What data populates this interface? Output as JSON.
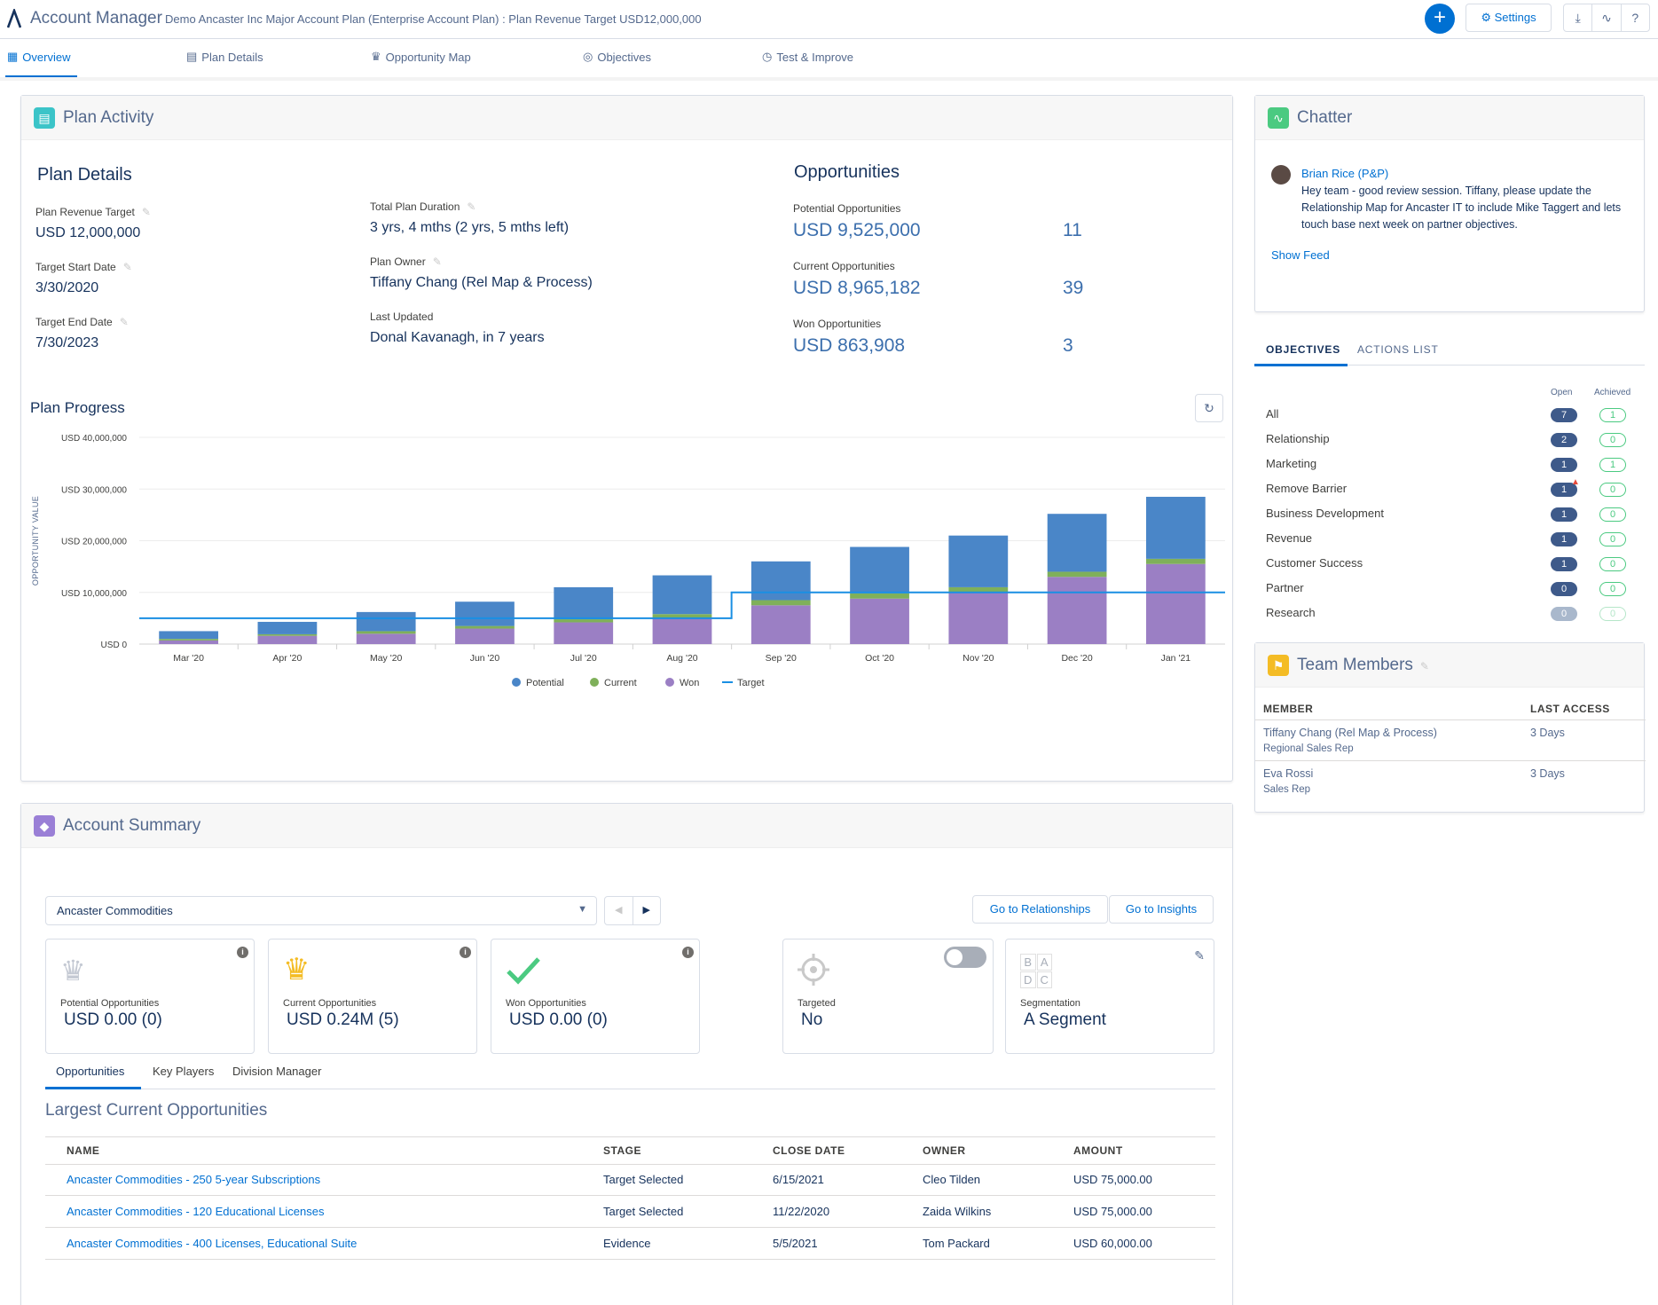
{
  "header": {
    "app_title": "Account Manager",
    "plan_title": "Demo Ancaster Inc Major Account Plan (Enterprise Account Plan) : Plan Revenue Target USD12,000,000",
    "settings_label": "Settings"
  },
  "nav": {
    "tabs": [
      {
        "label": "Overview"
      },
      {
        "label": "Plan Details"
      },
      {
        "label": "Opportunity Map"
      },
      {
        "label": "Objectives"
      },
      {
        "label": "Test & Improve"
      }
    ]
  },
  "plan_activity": {
    "title": "Plan Activity",
    "plan_details_heading": "Plan Details",
    "revenue_target_label": "Plan Revenue Target",
    "revenue_target_value": "USD 12,000,000",
    "start_label": "Target Start Date",
    "start_value": "3/30/2020",
    "end_label": "Target End Date",
    "end_value": "7/30/2023",
    "duration_label": "Total Plan Duration",
    "duration_value": "3 yrs, 4 mths (2 yrs, 5 mths left)",
    "owner_label": "Plan Owner",
    "owner_value": "Tiffany Chang (Rel Map & Process)",
    "updated_label": "Last Updated",
    "updated_value": "Donal Kavanagh, in 7 years",
    "opps_heading": "Opportunities",
    "potential_label": "Potential Opportunities",
    "potential_value": "USD 9,525,000",
    "potential_count": "11",
    "current_label": "Current Opportunities",
    "current_value": "USD 8,965,182",
    "current_count": "39",
    "won_label": "Won Opportunities",
    "won_value": "USD 863,908",
    "won_count": "3",
    "progress_heading": "Plan Progress"
  },
  "chart_data": {
    "type": "bar",
    "stacked": true,
    "categories": [
      "Mar '20",
      "Apr '20",
      "May '20",
      "Jun '20",
      "Jul '20",
      "Aug '20",
      "Sep '20",
      "Oct '20",
      "Nov '20",
      "Dec '20",
      "Jan '21"
    ],
    "ylabel": "OPPORTUNITY VALUE",
    "ylim": [
      0,
      40000000
    ],
    "yticks": [
      "USD 0",
      "USD 10,000,000",
      "USD 20,000,000",
      "USD 30,000,000",
      "USD 40,000,000"
    ],
    "series": [
      {
        "name": "Won",
        "color": "#9b7fc4",
        "values": [
          700000,
          1600000,
          2000000,
          3000000,
          4200000,
          5000000,
          7500000,
          8800000,
          10000000,
          13000000,
          15500000
        ]
      },
      {
        "name": "Current",
        "color": "#7fb05a",
        "values": [
          300000,
          300000,
          500000,
          500000,
          600000,
          800000,
          1000000,
          1000000,
          1000000,
          1000000,
          1000000
        ]
      },
      {
        "name": "Potential",
        "color": "#4a86c8",
        "values": [
          1500000,
          2400000,
          3700000,
          4700000,
          6200000,
          7500000,
          7500000,
          9000000,
          10000000,
          11200000,
          12000000
        ]
      }
    ],
    "target": {
      "name": "Target",
      "color": "#1a8fe3",
      "values": [
        5000000,
        5000000,
        5000000,
        5000000,
        5000000,
        5000000,
        10000000,
        10000000,
        10000000,
        10000000,
        10000000
      ]
    },
    "legend": [
      "Potential",
      "Current",
      "Won",
      "Target"
    ],
    "legend_position": "bottom",
    "grid": true
  },
  "chatter": {
    "title": "Chatter",
    "author": "Brian Rice (P&P)",
    "message": "Hey team - good review session. Tiffany, please update the Relationship Map for Ancaster IT to include Mike Taggert and lets touch base next week on partner objectives.",
    "show_feed": "Show Feed"
  },
  "objectives": {
    "tab_objectives": "OBJECTIVES",
    "tab_actions": "ACTIONS LIST",
    "open_label": "Open",
    "achieved_label": "Achieved",
    "rows": [
      {
        "name": "All",
        "open": "7",
        "achieved": "1"
      },
      {
        "name": "Relationship",
        "open": "2",
        "achieved": "0"
      },
      {
        "name": "Marketing",
        "open": "1",
        "achieved": "1"
      },
      {
        "name": "Remove Barrier",
        "open": "1",
        "achieved": "0"
      },
      {
        "name": "Business Development",
        "open": "1",
        "achieved": "0"
      },
      {
        "name": "Revenue",
        "open": "1",
        "achieved": "0"
      },
      {
        "name": "Customer Success",
        "open": "1",
        "achieved": "0"
      },
      {
        "name": "Partner",
        "open": "0",
        "achieved": "0"
      },
      {
        "name": "Research",
        "open": "0",
        "achieved": "0"
      }
    ]
  },
  "team": {
    "title": "Team Members",
    "col_member": "MEMBER",
    "col_access": "LAST ACCESS",
    "members": [
      {
        "name": "Tiffany Chang (Rel Map & Process)",
        "role": "Regional Sales Rep",
        "access": "3 Days"
      },
      {
        "name": "Eva Rossi",
        "role": "Sales Rep",
        "access": "3 Days"
      }
    ]
  },
  "account_summary": {
    "title": "Account Summary",
    "account_select": "Ancaster Commodities",
    "go_relationships": "Go to Relationships",
    "go_insights": "Go to Insights",
    "kpis": [
      {
        "label": "Potential Opportunities",
        "value": "USD 0.00 (0)"
      },
      {
        "label": "Current Opportunities",
        "value": "USD 0.24M (5)"
      },
      {
        "label": "Won Opportunities",
        "value": "USD 0.00 (0)"
      }
    ],
    "targeted_label": "Targeted",
    "targeted_value": "No",
    "segmentation_label": "Segmentation",
    "segmentation_value": "A Segment",
    "seg_letters": [
      "B",
      "A",
      "D",
      "C"
    ],
    "subtabs": [
      "Opportunities",
      "Key Players",
      "Division Manager"
    ],
    "table_title": "Largest Current Opportunities",
    "columns": [
      "NAME",
      "STAGE",
      "CLOSE DATE",
      "OWNER",
      "AMOUNT"
    ],
    "rows": [
      {
        "name": "Ancaster Commodities - 250 5-year Subscriptions",
        "stage": "Target Selected",
        "close": "6/15/2021",
        "owner": "Cleo Tilden",
        "amount": "USD 75,000.00"
      },
      {
        "name": "Ancaster Commodities - 120 Educational Licenses",
        "stage": "Target Selected",
        "close": "11/22/2020",
        "owner": "Zaida Wilkins",
        "amount": "USD 75,000.00"
      },
      {
        "name": "Ancaster Commodities - 400 Licenses, Educational Suite",
        "stage": "Evidence",
        "close": "5/5/2021",
        "owner": "Tom Packard",
        "amount": "USD 60,000.00"
      }
    ]
  }
}
